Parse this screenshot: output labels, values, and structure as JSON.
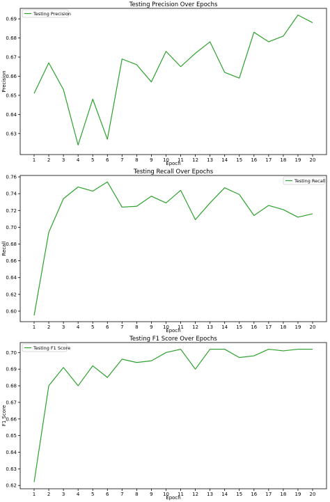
{
  "line_color": "#2ca02c",
  "chart_data": [
    {
      "type": "line",
      "title": "Testing Precision Over Epochs",
      "xlabel": "Epoch",
      "ylabel": "Precision",
      "legend": [
        "Testing Precision"
      ],
      "legend_loc": "upper-left",
      "x": [
        1,
        2,
        3,
        4,
        5,
        6,
        7,
        8,
        9,
        10,
        11,
        12,
        13,
        14,
        15,
        16,
        17,
        18,
        19,
        20
      ],
      "series": [
        {
          "name": "Testing Precision",
          "values": [
            0.651,
            0.667,
            0.653,
            0.624,
            0.648,
            0.627,
            0.669,
            0.666,
            0.657,
            0.673,
            0.665,
            0.672,
            0.678,
            0.662,
            0.659,
            0.683,
            0.678,
            0.681,
            0.692,
            0.688
          ]
        }
      ],
      "ylim": [
        0.619,
        0.6955
      ],
      "yticks": [
        "0.63",
        "0.64",
        "0.65",
        "0.66",
        "0.67",
        "0.68",
        "0.69"
      ]
    },
    {
      "type": "line",
      "title": "Testing Recall Over Epochs",
      "xlabel": "Epoch",
      "ylabel": "Recall",
      "legend": [
        "Testing Recall"
      ],
      "legend_loc": "upper-right",
      "x": [
        1,
        2,
        3,
        4,
        5,
        6,
        7,
        8,
        9,
        10,
        11,
        12,
        13,
        14,
        15,
        16,
        17,
        18,
        19,
        20
      ],
      "series": [
        {
          "name": "Testing Recall",
          "values": [
            0.595,
            0.694,
            0.734,
            0.748,
            0.743,
            0.754,
            0.724,
            0.725,
            0.737,
            0.729,
            0.744,
            0.709,
            0.729,
            0.747,
            0.739,
            0.714,
            0.726,
            0.721,
            0.712,
            0.716
          ]
        }
      ],
      "ylim": [
        0.5875,
        0.7617
      ],
      "yticks": [
        "0.60",
        "0.62",
        "0.64",
        "0.66",
        "0.68",
        "0.70",
        "0.72",
        "0.74",
        "0.76"
      ]
    },
    {
      "type": "line",
      "title": "Testing F1 Score Over Epochs",
      "xlabel": "Epoch",
      "ylabel": "F1 Score",
      "legend": [
        "Testing F1 Score"
      ],
      "legend_loc": "upper-left",
      "x": [
        1,
        2,
        3,
        4,
        5,
        6,
        7,
        8,
        9,
        10,
        11,
        12,
        13,
        14,
        15,
        16,
        17,
        18,
        19,
        20
      ],
      "series": [
        {
          "name": "Testing F1 Score",
          "values": [
            0.622,
            0.68,
            0.691,
            0.68,
            0.692,
            0.685,
            0.696,
            0.694,
            0.695,
            0.7,
            0.702,
            0.69,
            0.702,
            0.702,
            0.697,
            0.698,
            0.702,
            0.701,
            0.702,
            0.702
          ]
        }
      ],
      "ylim": [
        0.618,
        0.706
      ],
      "yticks": [
        "0.62",
        "0.63",
        "0.64",
        "0.65",
        "0.66",
        "0.67",
        "0.68",
        "0.69",
        "0.70"
      ]
    }
  ]
}
